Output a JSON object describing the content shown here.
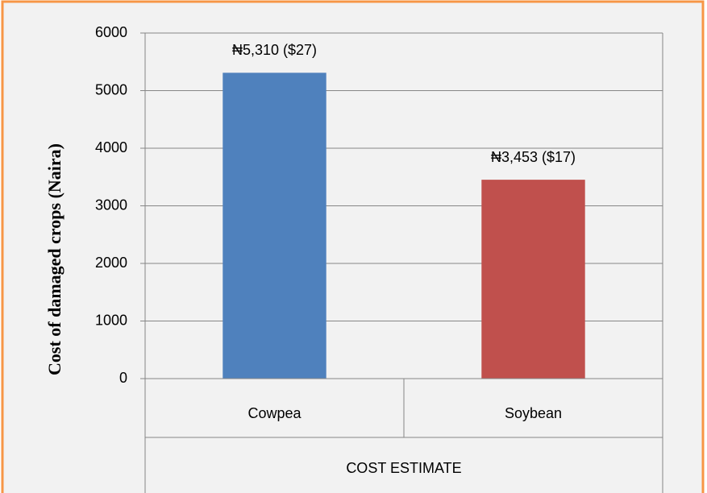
{
  "chart_data": {
    "type": "bar",
    "y_label": "Cost of damaged crops (Naira)",
    "group_label": "COST ESTIMATE",
    "categories": [
      "Cowpea",
      "Soybean"
    ],
    "values": [
      5310,
      3453
    ],
    "value_labels": [
      "₦5,310 ($27)",
      "₦3,453 ($17)"
    ],
    "colors": [
      "#4f81bd",
      "#c0504d"
    ],
    "ylim": [
      0,
      6000
    ],
    "yticks": [
      0,
      1000,
      2000,
      3000,
      4000,
      5000,
      6000
    ],
    "grid": true
  }
}
